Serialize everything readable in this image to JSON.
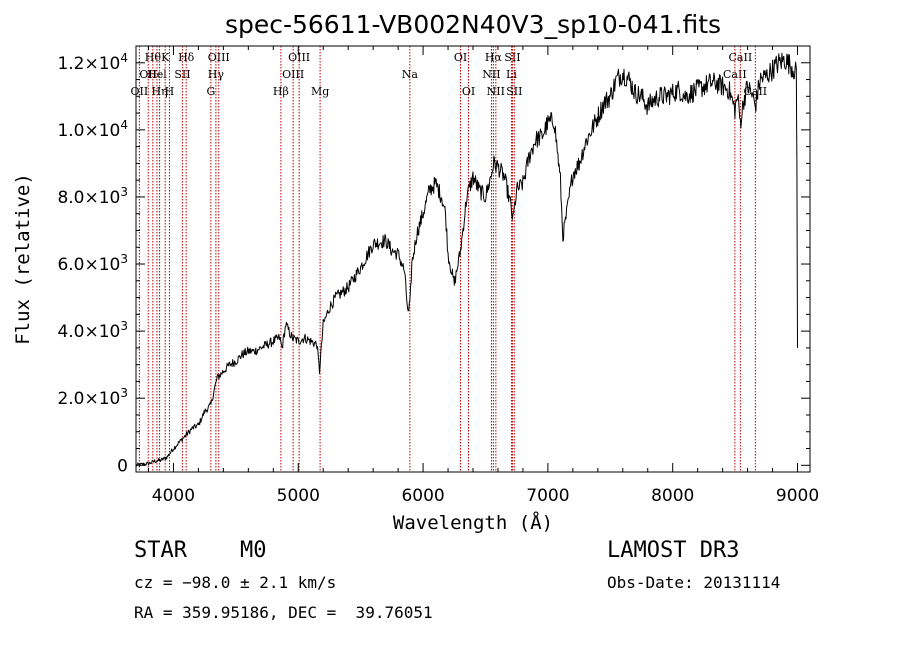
{
  "chart_data": {
    "type": "line",
    "title": "spec-56611-VB002N40V3_sp10-041.fits",
    "xlabel": "Wavelength (Å)",
    "ylabel": "Flux (relative)",
    "xlim": [
      3700,
      9100
    ],
    "ylim": [
      -200,
      12500
    ],
    "x_ticks": [
      4000,
      5000,
      6000,
      7000,
      8000,
      9000
    ],
    "x_tick_labels": [
      "4000",
      "5000",
      "6000",
      "7000",
      "8000",
      "9000"
    ],
    "y_ticks": [
      0,
      2000,
      4000,
      6000,
      8000,
      10000,
      12000
    ],
    "y_tick_labels": [
      {
        "m": "0",
        "e": ""
      },
      {
        "m": "2.0×10",
        "e": "3"
      },
      {
        "m": "4.0×10",
        "e": "3"
      },
      {
        "m": "6.0×10",
        "e": "3"
      },
      {
        "m": "8.0×10",
        "e": "3"
      },
      {
        "m": "1.0×10",
        "e": "4"
      },
      {
        "m": "1.2×10",
        "e": "4"
      }
    ],
    "spectrum": {
      "x": [
        3700,
        3800,
        3850,
        3900,
        3950,
        4000,
        4050,
        4100,
        4150,
        4200,
        4250,
        4300,
        4330,
        4350,
        4400,
        4450,
        4500,
        4550,
        4600,
        4650,
        4700,
        4750,
        4800,
        4850,
        4870,
        4900,
        4950,
        5000,
        5050,
        5100,
        5150,
        5170,
        5200,
        5250,
        5300,
        5400,
        5500,
        5600,
        5700,
        5750,
        5800,
        5850,
        5880,
        5895,
        5910,
        5950,
        6000,
        6050,
        6100,
        6150,
        6180,
        6200,
        6250,
        6300,
        6350,
        6400,
        6450,
        6500,
        6550,
        6563,
        6600,
        6650,
        6700,
        6720,
        6750,
        6800,
        6850,
        6900,
        6950,
        7000,
        7050,
        7100,
        7120,
        7150,
        7200,
        7250,
        7300,
        7350,
        7400,
        7450,
        7500,
        7550,
        7600,
        7650,
        7700,
        7750,
        7800,
        7850,
        7900,
        7950,
        8000,
        8050,
        8100,
        8150,
        8200,
        8250,
        8300,
        8350,
        8400,
        8450,
        8498,
        8520,
        8542,
        8570,
        8600,
        8640,
        8662,
        8700,
        8750,
        8800,
        8850,
        8900,
        8950,
        8990,
        8995,
        9000
      ],
      "y": [
        0,
        50,
        120,
        150,
        250,
        500,
        700,
        900,
        1100,
        1200,
        1600,
        1800,
        2300,
        2600,
        2800,
        3000,
        3100,
        3300,
        3400,
        3400,
        3500,
        3600,
        3700,
        3800,
        3500,
        4200,
        3800,
        3700,
        3800,
        3700,
        3600,
        2800,
        4200,
        4700,
        5000,
        5300,
        5900,
        6600,
        6700,
        6400,
        6300,
        5800,
        4500,
        4800,
        6000,
        6900,
        7500,
        8200,
        8400,
        8000,
        7500,
        6300,
        5400,
        6400,
        8000,
        8600,
        8200,
        8000,
        8700,
        9000,
        8900,
        8600,
        7800,
        7300,
        8200,
        8400,
        9200,
        9700,
        9800,
        10200,
        10300,
        8500,
        6800,
        7500,
        8700,
        9000,
        9600,
        10000,
        10400,
        10800,
        11000,
        11500,
        11700,
        11500,
        11100,
        11000,
        10700,
        10900,
        11000,
        11000,
        11100,
        11200,
        11000,
        11100,
        11200,
        11300,
        11400,
        11400,
        11300,
        11200,
        10600,
        11000,
        10200,
        10900,
        11300,
        11000,
        10700,
        11500,
        11600,
        11800,
        12000,
        12100,
        11900,
        11700,
        9000,
        3500
      ]
    },
    "lines": [
      {
        "x": 3727,
        "row": 2,
        "label": "OII"
      },
      {
        "x": 3798,
        "row": 1,
        "label": "OII"
      },
      {
        "x": 3835,
        "row": 0,
        "label": "Hθ"
      },
      {
        "x": 3868,
        "row": 1,
        "label": "Hel"
      },
      {
        "x": 3889,
        "row": 2,
        "label": "Hη"
      },
      {
        "x": 3934,
        "row": 0,
        "label": "K"
      },
      {
        "x": 3968,
        "row": 2,
        "label": "H"
      },
      {
        "x": 4072,
        "row": 1,
        "label": "SII"
      },
      {
        "x": 4102,
        "row": 0,
        "label": "Hδ"
      },
      {
        "x": 4300,
        "row": 2,
        "label": "G"
      },
      {
        "x": 4340,
        "row": 1,
        "label": "Hγ"
      },
      {
        "x": 4363,
        "row": 0,
        "label": "OIII"
      },
      {
        "x": 4861,
        "row": 2,
        "label": "Hβ"
      },
      {
        "x": 4959,
        "row": 1,
        "label": "OIII"
      },
      {
        "x": 5007,
        "row": 0,
        "label": "OIII"
      },
      {
        "x": 5175,
        "row": 2,
        "label": "Mg"
      },
      {
        "x": 5894,
        "row": 1,
        "label": "Na"
      },
      {
        "x": 6300,
        "row": 0,
        "label": "OI"
      },
      {
        "x": 6364,
        "row": 2,
        "label": "OI"
      },
      {
        "x": 6548,
        "row": 1,
        "label": "NII"
      },
      {
        "x": 6563,
        "row": 0,
        "label": "Hα"
      },
      {
        "x": 6583,
        "row": 2,
        "label": "NII"
      },
      {
        "x": 6708,
        "row": 1,
        "label": "Li"
      },
      {
        "x": 6716,
        "row": 0,
        "label": "SII"
      },
      {
        "x": 6731,
        "row": 2,
        "label": "SII"
      },
      {
        "x": 8498,
        "row": 1,
        "label": "CaII"
      },
      {
        "x": 8542,
        "row": 0,
        "label": "CaII"
      },
      {
        "x": 8662,
        "row": 2,
        "label": "CaII"
      }
    ]
  },
  "info": {
    "class_line": "STAR    M0",
    "survey": "LAMOST DR3",
    "cz": "cz = −98.0 ± 2.1 km/s",
    "obs_date": "Obs-Date: 20131114",
    "coords": "RA = 359.95186, DEC =  39.76051"
  }
}
